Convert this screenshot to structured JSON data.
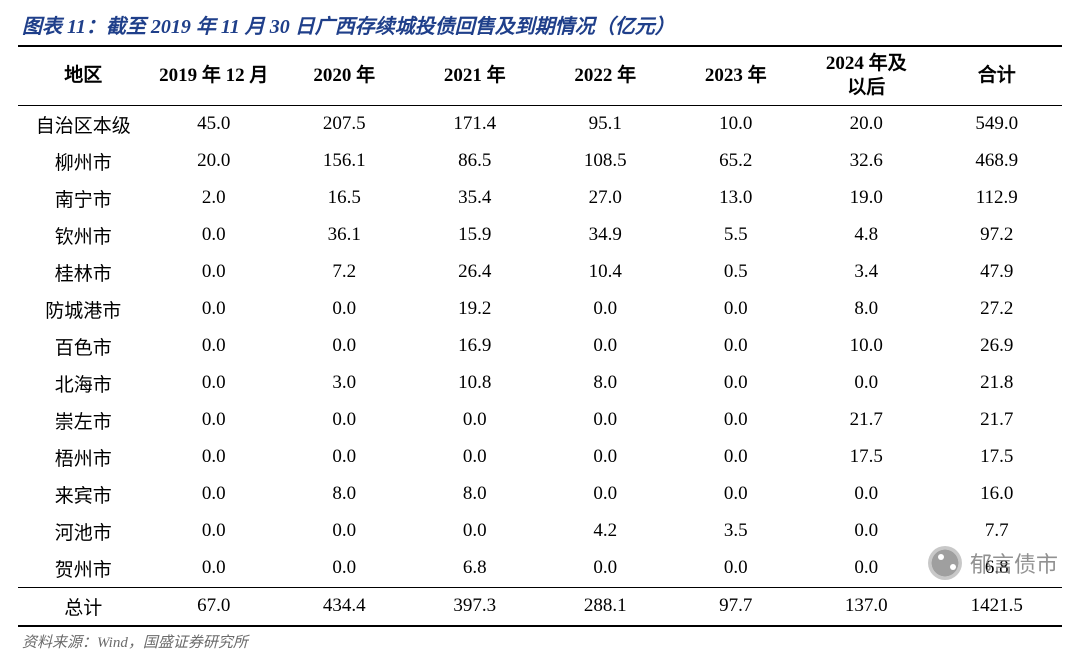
{
  "title": "图表 11：截至 2019 年 11 月 30 日广西存续城投债回售及到期情况（亿元）",
  "source": "资料来源：Wind，国盛证券研究所",
  "watermark": "郁言债市",
  "table": {
    "type": "table",
    "columns": [
      "地区",
      "2019 年 12 月",
      "2020 年",
      "2021 年",
      "2022 年",
      "2023 年",
      "2024 年及以后",
      "合计"
    ],
    "col_widths": [
      "12.5%",
      "12.5%",
      "12.5%",
      "12.5%",
      "12.5%",
      "12.5%",
      "12.5%",
      "12.5%"
    ],
    "header_color": "#000000",
    "header_border_color": "#000000",
    "font_size": 19,
    "header_font_weight": "bold",
    "rows": [
      [
        "自治区本级",
        "45.0",
        "207.5",
        "171.4",
        "95.1",
        "10.0",
        "20.0",
        "549.0"
      ],
      [
        "柳州市",
        "20.0",
        "156.1",
        "86.5",
        "108.5",
        "65.2",
        "32.6",
        "468.9"
      ],
      [
        "南宁市",
        "2.0",
        "16.5",
        "35.4",
        "27.0",
        "13.0",
        "19.0",
        "112.9"
      ],
      [
        "钦州市",
        "0.0",
        "36.1",
        "15.9",
        "34.9",
        "5.5",
        "4.8",
        "97.2"
      ],
      [
        "桂林市",
        "0.0",
        "7.2",
        "26.4",
        "10.4",
        "0.5",
        "3.4",
        "47.9"
      ],
      [
        "防城港市",
        "0.0",
        "0.0",
        "19.2",
        "0.0",
        "0.0",
        "8.0",
        "27.2"
      ],
      [
        "百色市",
        "0.0",
        "0.0",
        "16.9",
        "0.0",
        "0.0",
        "10.0",
        "26.9"
      ],
      [
        "北海市",
        "0.0",
        "3.0",
        "10.8",
        "8.0",
        "0.0",
        "0.0",
        "21.8"
      ],
      [
        "崇左市",
        "0.0",
        "0.0",
        "0.0",
        "0.0",
        "0.0",
        "21.7",
        "21.7"
      ],
      [
        "梧州市",
        "0.0",
        "0.0",
        "0.0",
        "0.0",
        "0.0",
        "17.5",
        "17.5"
      ],
      [
        "来宾市",
        "0.0",
        "8.0",
        "8.0",
        "0.0",
        "0.0",
        "0.0",
        "16.0"
      ],
      [
        "河池市",
        "0.0",
        "0.0",
        "0.0",
        "4.2",
        "3.5",
        "0.0",
        "7.7"
      ],
      [
        "贺州市",
        "0.0",
        "0.0",
        "6.8",
        "0.0",
        "0.0",
        "0.0",
        "6.8"
      ]
    ],
    "total_row": [
      "总计",
      "67.0",
      "434.4",
      "397.3",
      "288.1",
      "97.7",
      "137.0",
      "1421.5"
    ]
  },
  "colors": {
    "title": "#1f3f8a",
    "text": "#000000",
    "source": "#6b6b6b",
    "background": "#ffffff",
    "watermark": "#7a7a7a"
  }
}
